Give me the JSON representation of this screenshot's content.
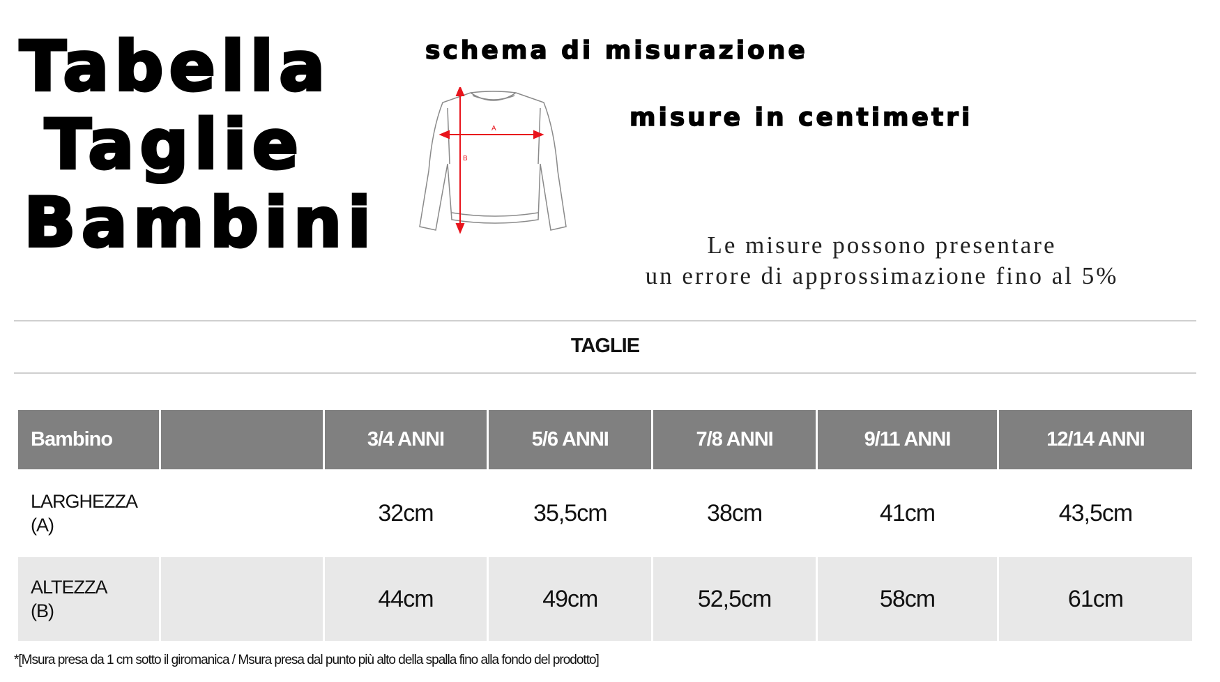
{
  "title": {
    "lines": [
      "Tabella",
      "Taglie",
      "Bambini"
    ]
  },
  "schema_heading": "schema di misurazione",
  "units_heading": "misure in centimetri",
  "diagram": {
    "label_a": "A",
    "label_b": "B",
    "arrow_color": "#e8141c"
  },
  "note": {
    "line1": "Le misure possono presentare",
    "line2": "un errore di approssimazione fino al 5%"
  },
  "section_title": "TAGLIE",
  "table": {
    "headers": [
      "Bambino",
      "",
      "3/4 ANNI",
      "5/6 ANNI",
      "7/8 ANNI",
      "9/11 ANNI",
      "12/14 ANNI"
    ],
    "rows": [
      {
        "label1": "LARGHEZZA",
        "label2": "(A)",
        "values": [
          "32cm",
          "35,5cm",
          "38cm",
          "41cm",
          "43,5cm"
        ]
      },
      {
        "label1": "ALTEZZA",
        "label2": "(B)",
        "values": [
          "44cm",
          "49cm",
          "52,5cm",
          "58cm",
          "61cm"
        ]
      }
    ],
    "header_color": "#808080",
    "alt_row_color": "#e8e8e8"
  },
  "footnote": "*[Msura presa da 1 cm sotto il giromanica / Msura presa dal punto più alto della spalla fino alla fondo del prodotto]"
}
